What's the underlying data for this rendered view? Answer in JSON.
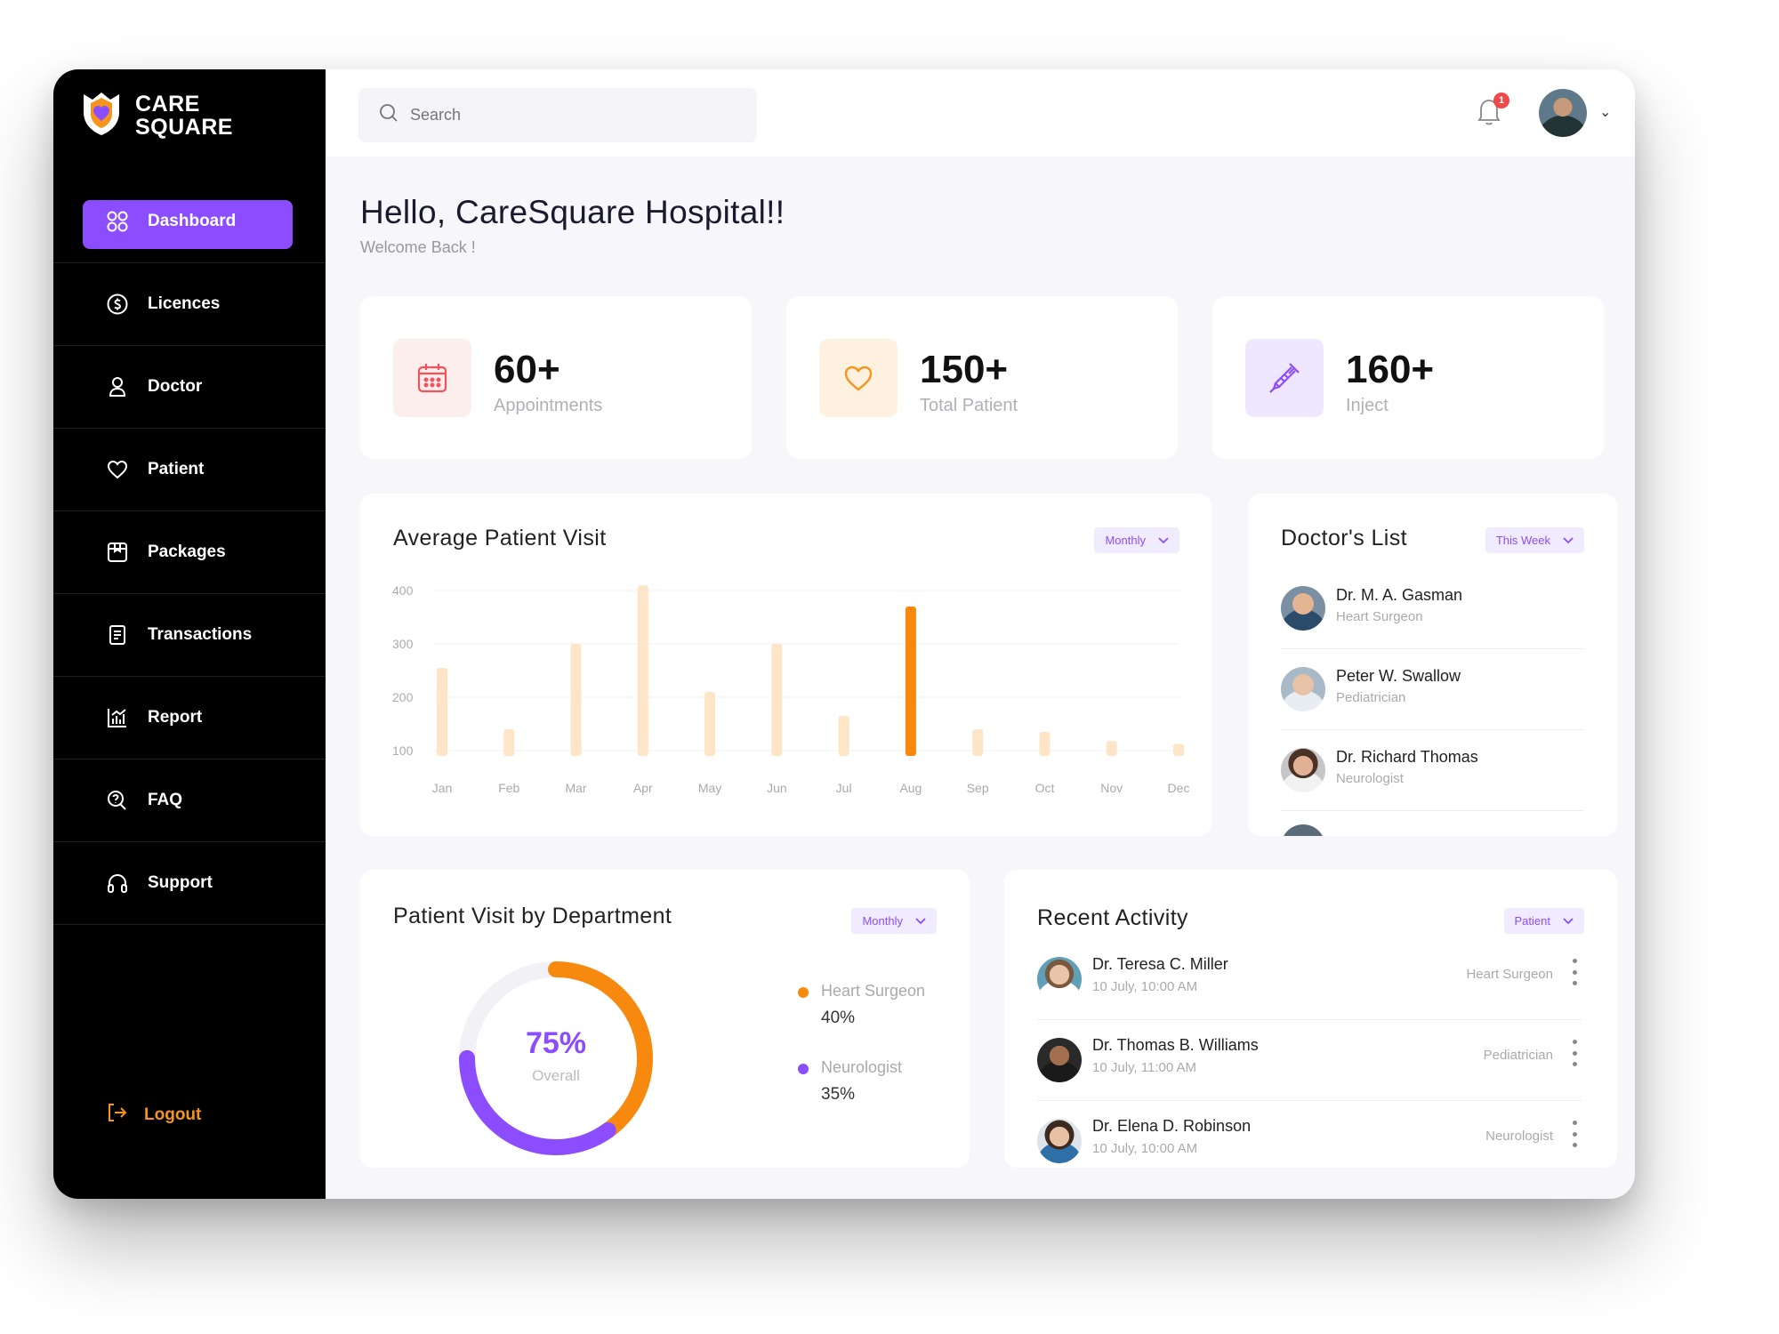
{
  "brand": {
    "line1": "CARE",
    "line2": "SQUARE"
  },
  "sidebar": {
    "items": [
      {
        "label": "Dashboard",
        "icon": "grid-icon",
        "active": true
      },
      {
        "label": "Licences",
        "icon": "dollar-circle-icon",
        "active": false
      },
      {
        "label": "Doctor",
        "icon": "user-icon",
        "active": false
      },
      {
        "label": "Patient",
        "icon": "heart-icon",
        "active": false
      },
      {
        "label": "Packages",
        "icon": "package-icon",
        "active": false
      },
      {
        "label": "Transactions",
        "icon": "receipt-icon",
        "active": false
      },
      {
        "label": "Report",
        "icon": "bar-chart-icon",
        "active": false
      },
      {
        "label": "FAQ",
        "icon": "question-icon",
        "active": false
      },
      {
        "label": "Support",
        "icon": "headphones-icon",
        "active": false
      }
    ],
    "logout": "Logout"
  },
  "topbar": {
    "search_placeholder": "Search",
    "notification_count": "1"
  },
  "greeting": {
    "title": "Hello, CareSquare Hospital!!",
    "subtitle": "Welcome Back !"
  },
  "stats": [
    {
      "value": "60+",
      "label": "Appointments",
      "icon": "calendar-icon",
      "color": "#f2545b",
      "bg": "#fdeeee"
    },
    {
      "value": "150+",
      "label": "Total Patient",
      "icon": "heart-icon",
      "color": "#f7941d",
      "bg": "#fff1e0"
    },
    {
      "value": "160+",
      "label": "Inject",
      "icon": "syringe-icon",
      "color": "#8b4dff",
      "bg": "#efe6ff"
    }
  ],
  "visits": {
    "title": "Average Patient Visit",
    "filter": "Monthly"
  },
  "chart_data": {
    "type": "bar",
    "categories": [
      "Jan",
      "Feb",
      "Mar",
      "Apr",
      "May",
      "Jun",
      "Jul",
      "Aug",
      "Sep",
      "Oct",
      "Nov",
      "Dec"
    ],
    "values": [
      255,
      140,
      300,
      410,
      210,
      300,
      165,
      370,
      140,
      135,
      118,
      113
    ],
    "highlight": "Aug",
    "ylim": [
      90,
      410
    ],
    "yticks": [
      100,
      200,
      300,
      400
    ],
    "colors": {
      "bar": "#ffe5c8",
      "highlight": "#f7890f"
    }
  },
  "doctors": {
    "title": "Doctor's List",
    "filter": "This Week",
    "items": [
      {
        "name": "Dr. M. A. Gasman",
        "specialty": "Heart Surgeon"
      },
      {
        "name": "Peter W. Swallow",
        "specialty": "Pediatrician"
      },
      {
        "name": "Dr. Richard Thomas",
        "specialty": "Neurologist"
      }
    ]
  },
  "department": {
    "title": "Patient Visit by Department",
    "filter": "Monthly",
    "overall_value": "75%",
    "overall_label": "Overall",
    "overall_fraction": 0.75,
    "segments": [
      {
        "name": "Heart Surgeon",
        "value": "40%",
        "fraction": 0.4,
        "color": "#f7890f"
      },
      {
        "name": "Neurologist",
        "value": "35%",
        "fraction": 0.35,
        "color": "#8b4dff"
      }
    ]
  },
  "activity": {
    "title": "Recent Activity",
    "filter": "Patient",
    "items": [
      {
        "name": "Dr. Teresa C. Miller",
        "time": "10 July, 10:00 AM",
        "specialty": "Heart Surgeon"
      },
      {
        "name": "Dr. Thomas B. Williams",
        "time": "10 July, 11:00 AM",
        "specialty": "Pediatrician"
      },
      {
        "name": "Dr. Elena D. Robinson",
        "time": "10 July, 10:00 AM",
        "specialty": "Neurologist"
      }
    ]
  }
}
